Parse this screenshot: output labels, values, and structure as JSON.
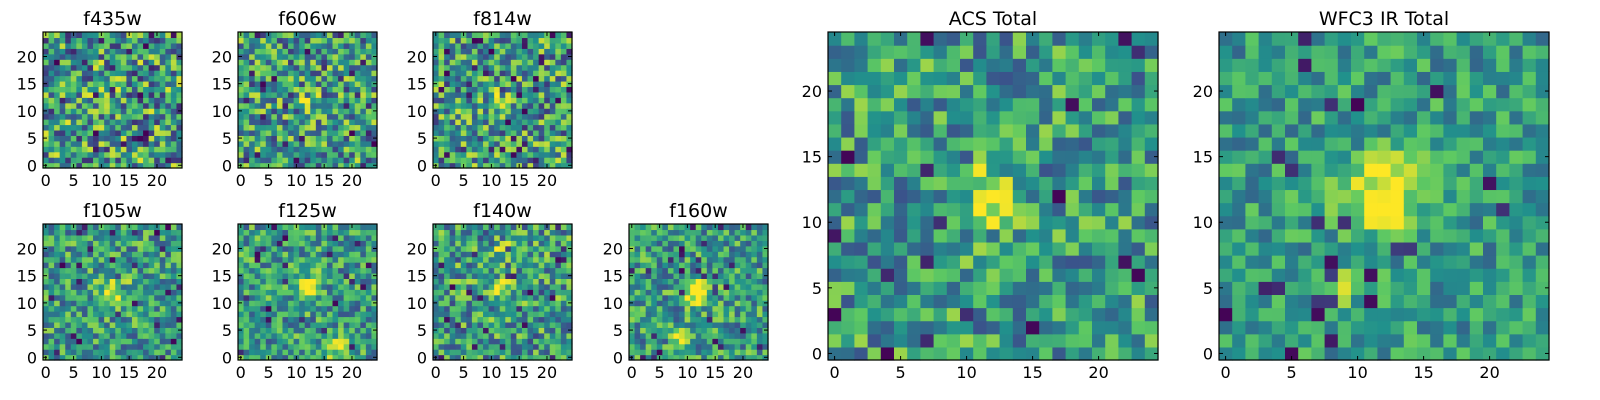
{
  "figure": {
    "colormap": "viridis",
    "colormap_stops": [
      "#440154",
      "#3b528b",
      "#21918c",
      "#5ec962",
      "#fde725"
    ]
  },
  "chart_data": [
    {
      "type": "heatmap",
      "title": "f435w",
      "grid": [
        25,
        25
      ],
      "xlim": [
        0,
        24
      ],
      "ylim": [
        0,
        24
      ],
      "x_ticks": [
        "0",
        "5",
        "10",
        "15",
        "20"
      ],
      "y_ticks": [
        "0",
        "5",
        "10",
        "15",
        "20"
      ],
      "noise": 0.55,
      "peaks": []
    },
    {
      "type": "heatmap",
      "title": "f606w",
      "grid": [
        25,
        25
      ],
      "xlim": [
        0,
        24
      ],
      "ylim": [
        0,
        24
      ],
      "x_ticks": [
        "0",
        "5",
        "10",
        "15",
        "20"
      ],
      "y_ticks": [
        "0",
        "5",
        "10",
        "15",
        "20"
      ],
      "noise": 0.5,
      "peaks": [
        {
          "x": 12,
          "y": 12,
          "amp": 0.35,
          "sigma": 1.2
        }
      ]
    },
    {
      "type": "heatmap",
      "title": "f814w",
      "grid": [
        25,
        25
      ],
      "xlim": [
        0,
        24
      ],
      "ylim": [
        0,
        24
      ],
      "x_ticks": [
        "0",
        "5",
        "10",
        "15",
        "20"
      ],
      "y_ticks": [
        "0",
        "5",
        "10",
        "15",
        "20"
      ],
      "noise": 0.5,
      "peaks": [
        {
          "x": 12,
          "y": 12,
          "amp": 0.45,
          "sigma": 1.2
        }
      ]
    },
    {
      "type": "heatmap",
      "title": "f105w",
      "grid": [
        25,
        25
      ],
      "xlim": [
        0,
        24
      ],
      "ylim": [
        0,
        24
      ],
      "x_ticks": [
        "0",
        "5",
        "10",
        "15",
        "20"
      ],
      "y_ticks": [
        "0",
        "5",
        "10",
        "15",
        "20"
      ],
      "noise": 0.4,
      "peaks": [
        {
          "x": 12,
          "y": 12,
          "amp": 0.5,
          "sigma": 1.8
        }
      ]
    },
    {
      "type": "heatmap",
      "title": "f125w",
      "grid": [
        25,
        25
      ],
      "xlim": [
        0,
        24
      ],
      "ylim": [
        0,
        24
      ],
      "x_ticks": [
        "0",
        "5",
        "10",
        "15",
        "20"
      ],
      "y_ticks": [
        "0",
        "5",
        "10",
        "15",
        "20"
      ],
      "noise": 0.4,
      "peaks": [
        {
          "x": 12,
          "y": 13,
          "amp": 0.45,
          "sigma": 1.6
        },
        {
          "x": 17,
          "y": 2,
          "amp": 0.45,
          "sigma": 1.3
        }
      ]
    },
    {
      "type": "heatmap",
      "title": "f140w",
      "grid": [
        25,
        25
      ],
      "xlim": [
        0,
        24
      ],
      "ylim": [
        0,
        24
      ],
      "x_ticks": [
        "0",
        "5",
        "10",
        "15",
        "20"
      ],
      "y_ticks": [
        "0",
        "5",
        "10",
        "15",
        "20"
      ],
      "noise": 0.45,
      "peaks": [
        {
          "x": 12,
          "y": 13,
          "amp": 0.5,
          "sigma": 1.3
        },
        {
          "x": 12,
          "y": 20,
          "amp": 0.3,
          "sigma": 1.0
        }
      ]
    },
    {
      "type": "heatmap",
      "title": "f160w",
      "grid": [
        25,
        25
      ],
      "xlim": [
        0,
        24
      ],
      "ylim": [
        0,
        24
      ],
      "x_ticks": [
        "0",
        "5",
        "10",
        "15",
        "20"
      ],
      "y_ticks": [
        "0",
        "5",
        "10",
        "15",
        "20"
      ],
      "noise": 0.4,
      "peaks": [
        {
          "x": 12,
          "y": 12,
          "amp": 0.55,
          "sigma": 1.5
        },
        {
          "x": 9,
          "y": 4,
          "amp": 0.4,
          "sigma": 1.0
        }
      ]
    },
    {
      "type": "heatmap",
      "title": "ACS Total",
      "grid": [
        25,
        25
      ],
      "xlim": [
        0,
        24
      ],
      "ylim": [
        0,
        24
      ],
      "x_ticks": [
        "0",
        "5",
        "10",
        "15",
        "20"
      ],
      "y_ticks": [
        "0",
        "5",
        "10",
        "15",
        "20"
      ],
      "noise": 0.4,
      "peaks": [
        {
          "x": 12,
          "y": 12,
          "amp": 0.55,
          "sigma": 1.4
        }
      ]
    },
    {
      "type": "heatmap",
      "title": "WFC3 IR Total",
      "grid": [
        25,
        25
      ],
      "xlim": [
        0,
        24
      ],
      "ylim": [
        0,
        24
      ],
      "x_ticks": [
        "0",
        "5",
        "10",
        "15",
        "20"
      ],
      "y_ticks": [
        "0",
        "5",
        "10",
        "15",
        "20"
      ],
      "noise": 0.3,
      "peaks": [
        {
          "x": 12,
          "y": 12,
          "amp": 0.6,
          "sigma": 2.0
        },
        {
          "x": 9,
          "y": 5,
          "amp": 0.25,
          "sigma": 1.0
        }
      ]
    }
  ]
}
